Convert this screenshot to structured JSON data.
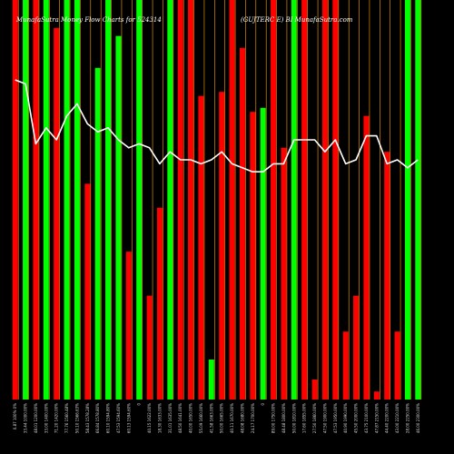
{
  "chart_data": {
    "type": "bar",
    "title_left": "MunafaSutra  Money Flow  Charts for 524314",
    "title_right": "(GUJTERC E)  BI  MunafaSutra.com",
    "colors": {
      "background": "#000000",
      "up": "#00ff00",
      "down": "#ff0000",
      "line": "#ffffff",
      "gridline": "#ffa500"
    },
    "ylim": [
      0,
      100
    ],
    "categories": [
      "0.87 100% 0%",
      "33.44 1000.00%",
      "48.01 1200.00%",
      "33.00 1400.00%",
      "71.20 1420.00%",
      "77.76 1560.48%",
      "50.10 1566.63%",
      "58.43 1578.28%",
      "66.84 1578.80%",
      "60.10 1594.80%",
      "47.53 1594.60%",
      "60.13 1594.60%",
      "0",
      "40.15 1622.00%",
      "18.30 1633.00%",
      "31.01 1635.00%",
      "48.50 1641.00%",
      "40.00 1650.00%",
      "55.09 1660.00%",
      "41.58 1663.00%",
      "50.00 1665.00%",
      "40.11 1670.00%",
      "48.08 1680.00%",
      "24.17 1700.00%",
      "0",
      "89.00 1750.00%",
      "48.48 1800.00%",
      "50.00 1810.00%",
      "17.60 1855.00%",
      "27.50 1860.00%",
      "47.50 1900.00%",
      "47.53 1950.00%",
      "40.90 1990.00%",
      "45.50 2000.00%",
      "43.75 2100.00%",
      "47.87 2150.00%",
      "44.40 2200.00%",
      "43.00 2210.00%",
      "28.00 2250.00%",
      "46.00 2300.00%"
    ],
    "values": [
      100,
      100,
      100,
      100,
      93,
      100,
      100,
      54,
      83,
      100,
      91,
      37,
      100,
      26,
      48,
      100,
      100,
      100,
      76,
      10,
      77,
      100,
      88,
      72,
      73,
      100,
      63,
      100,
      100,
      5,
      100,
      100,
      17,
      26,
      71,
      2,
      62,
      17,
      100,
      100
    ],
    "directions": [
      "down",
      "up",
      "down",
      "up",
      "down",
      "up",
      "up",
      "down",
      "up",
      "up",
      "up",
      "down",
      "up",
      "down",
      "down",
      "up",
      "down",
      "down",
      "down",
      "up",
      "down",
      "down",
      "down",
      "down",
      "up",
      "down",
      "down",
      "up",
      "down",
      "down",
      "down",
      "down",
      "down",
      "down",
      "down",
      "down",
      "down",
      "down",
      "up",
      "up"
    ],
    "line_values": [
      80,
      79,
      64,
      68,
      65,
      71,
      74,
      69,
      67,
      68,
      65,
      63,
      64,
      63,
      59,
      62,
      60,
      60,
      59,
      60,
      62,
      59,
      58,
      57,
      57,
      59,
      59,
      65,
      65,
      65,
      62,
      65,
      59,
      60,
      66,
      66,
      59,
      60,
      58,
      60
    ]
  }
}
